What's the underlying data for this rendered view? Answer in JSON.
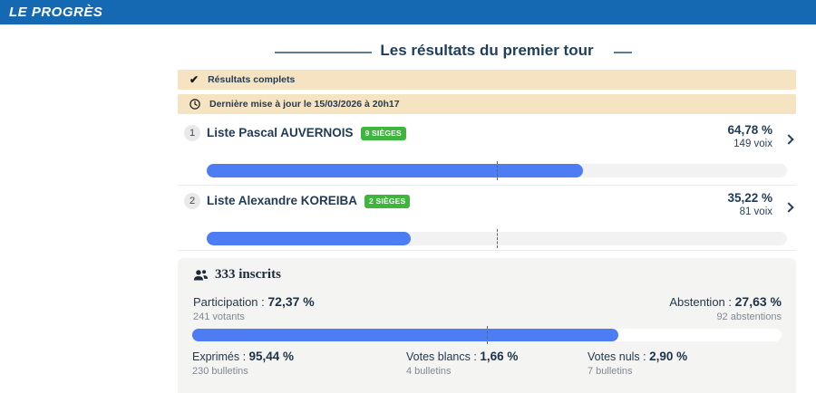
{
  "header": {
    "logo": "LE PROGRÈS"
  },
  "title": "Les résultats du premier tour",
  "banners": {
    "status": "Résultats complets",
    "updated": "Dernière mise à jour le 15/03/2026 à 20h17"
  },
  "candidates": [
    {
      "rank": "1",
      "name": "Liste Pascal AUVERNOIS",
      "seats": "9 SIÈGES",
      "percent_label": "64,78 %",
      "votes_label": "149 voix",
      "percent": 64.78
    },
    {
      "rank": "2",
      "name": "Liste Alexandre KOREIBA",
      "seats": "2 SIÈGES",
      "percent_label": "35,22 %",
      "votes_label": "81 voix",
      "percent": 35.22
    }
  ],
  "stats": {
    "inscrits": "333 inscrits",
    "participation": {
      "label": "Participation : ",
      "value": "72,37 %",
      "sub": "241 votants",
      "percent": 72.37
    },
    "abstention": {
      "label": "Abstention : ",
      "value": "27,63 %",
      "sub": "92 abstentions"
    },
    "details": [
      {
        "label": "Exprimés : ",
        "value": "95,44 %",
        "sub": "230 bulletins"
      },
      {
        "label": "Votes blancs : ",
        "value": "1,66 %",
        "sub": "4 bulletins"
      },
      {
        "label": "Votes nuls : ",
        "value": "2,90 %",
        "sub": "7 bulletins"
      }
    ]
  },
  "colors": {
    "brand_blue": "#1569b2",
    "navy_text": "#1f3e5c",
    "banner_cream": "#f6e3c1",
    "badge_green": "#3eb53c",
    "bar_blue": "#4c7df2",
    "panel_gray": "#f4f4f3"
  }
}
